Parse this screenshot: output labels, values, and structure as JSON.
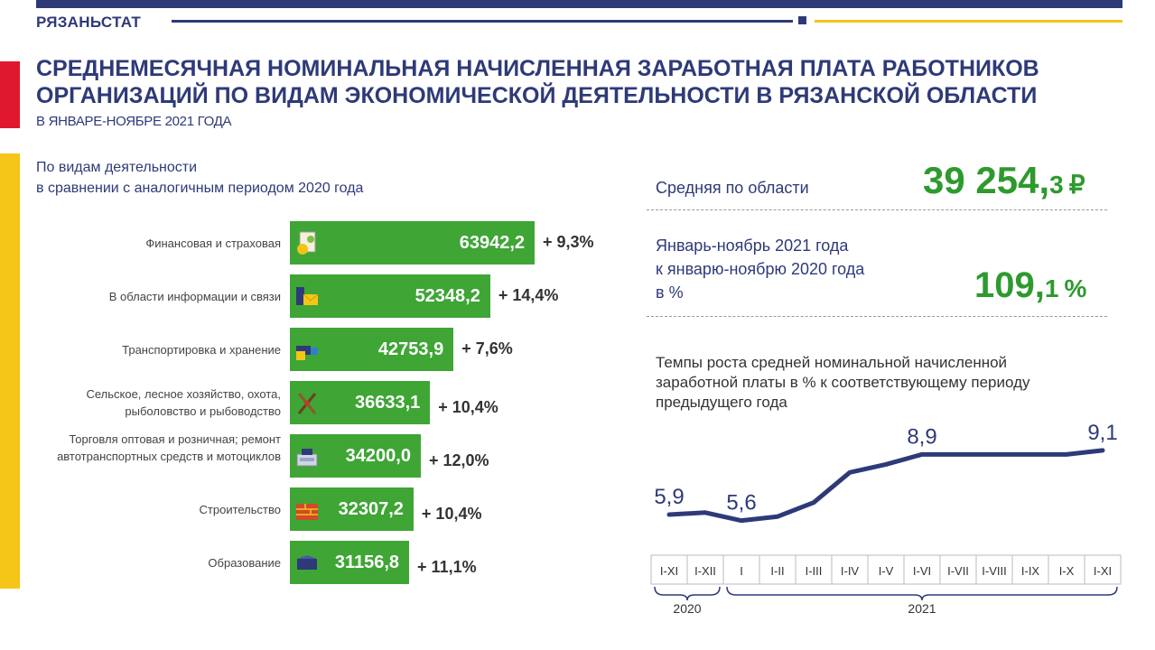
{
  "header": {
    "brand": "РЯЗАНЬСТАТ",
    "title_line1": "СРЕДНЕМЕСЯЧНАЯ НОМИНАЛЬНАЯ НАЧИСЛЕННАЯ ЗАРАБОТНАЯ ПЛАТА  РАБОТНИКОВ",
    "title_line2": "ОРГАНИЗАЦИЙ ПО ВИДАМ ЭКОНОМИЧЕСКОЙ ДЕЯТЕЛЬНОСТИ В РЯЗАНСКОЙ ОБЛАСТИ",
    "subtitle": "В ЯНВАРЕ-НОЯБРЕ 2021 ГОДА"
  },
  "colors": {
    "navy": "#2e3a78",
    "green_bar": "#3fa535",
    "green_text": "#2e9a2e",
    "red": "#e0182d",
    "yellow": "#f5c518"
  },
  "sector_note": {
    "line1": "По видам деятельности",
    "line2": "в сравнении с аналогичным периодом 2020 года"
  },
  "stats": {
    "avg_label": "Средняя  по области",
    "avg_main": "39 254,",
    "avg_decimal": "3",
    "avg_unit": "₽",
    "growth_label_line1": "Январь-ноябрь  2021 года",
    "growth_label_line2": "к январю-ноябрю  2020 года",
    "growth_label_line3": "в %",
    "growth_main": "109,",
    "growth_decimal": "1",
    "growth_unit": "%"
  },
  "chart_note": "Темпы роста средней номинальной начисленной заработной платы в % к соответствующему периоду предыдущего года",
  "chart_data": [
    {
      "type": "bar",
      "orientation": "horizontal",
      "categories": [
        "Финансовая и страховая",
        "В области информации и связи",
        "Транспортировка и хранение",
        "Сельское, лесное хозяйство, охота, рыболовство и рыбоводство",
        "Торговля оптовая и розничная; ремонт автотранспортных средств и мотоциклов",
        "Строительство",
        "Образование"
      ],
      "values": [
        63942.2,
        52348.2,
        42753.9,
        36633.1,
        34200.0,
        32307.2,
        31156.8
      ],
      "value_labels": [
        "63942,2",
        "52348,2",
        "42753,9",
        "36633,1",
        "34200,0",
        "32307,2",
        "31156,8"
      ],
      "change_labels": [
        "+ 9,3%",
        "+ 14,4%",
        "+ 7,6%",
        "+ 10,4%",
        "+ 12,0%",
        "+ 10,4%",
        "+ 11,1%"
      ],
      "icons": [
        "money-document-icon",
        "computer-mail-icon",
        "truck-icon",
        "agriculture-tools-icon",
        "cash-register-icon",
        "bricks-icon",
        "book-icon"
      ],
      "color": "#3fa535"
    },
    {
      "type": "line",
      "x": [
        "I-XI",
        "I-XII",
        "I",
        "I-II",
        "I-III",
        "I-IV",
        "I-V",
        "I-VI",
        "I-VII",
        "I-VIII",
        "I-IX",
        "I-X",
        "I-XI"
      ],
      "y": [
        5.9,
        6.0,
        5.6,
        5.8,
        6.5,
        8.0,
        8.4,
        8.9,
        8.9,
        8.9,
        8.9,
        8.9,
        9.1
      ],
      "point_labels": [
        {
          "index": 0,
          "text": "5,9"
        },
        {
          "index": 2,
          "text": "5,6"
        },
        {
          "index": 7,
          "text": "8,9"
        },
        {
          "index": 12,
          "text": "9,1"
        }
      ],
      "groups": [
        {
          "label": "2020",
          "from": 0,
          "to": 1
        },
        {
          "label": "2021",
          "from": 2,
          "to": 12
        }
      ],
      "color": "#2e3a78"
    }
  ]
}
